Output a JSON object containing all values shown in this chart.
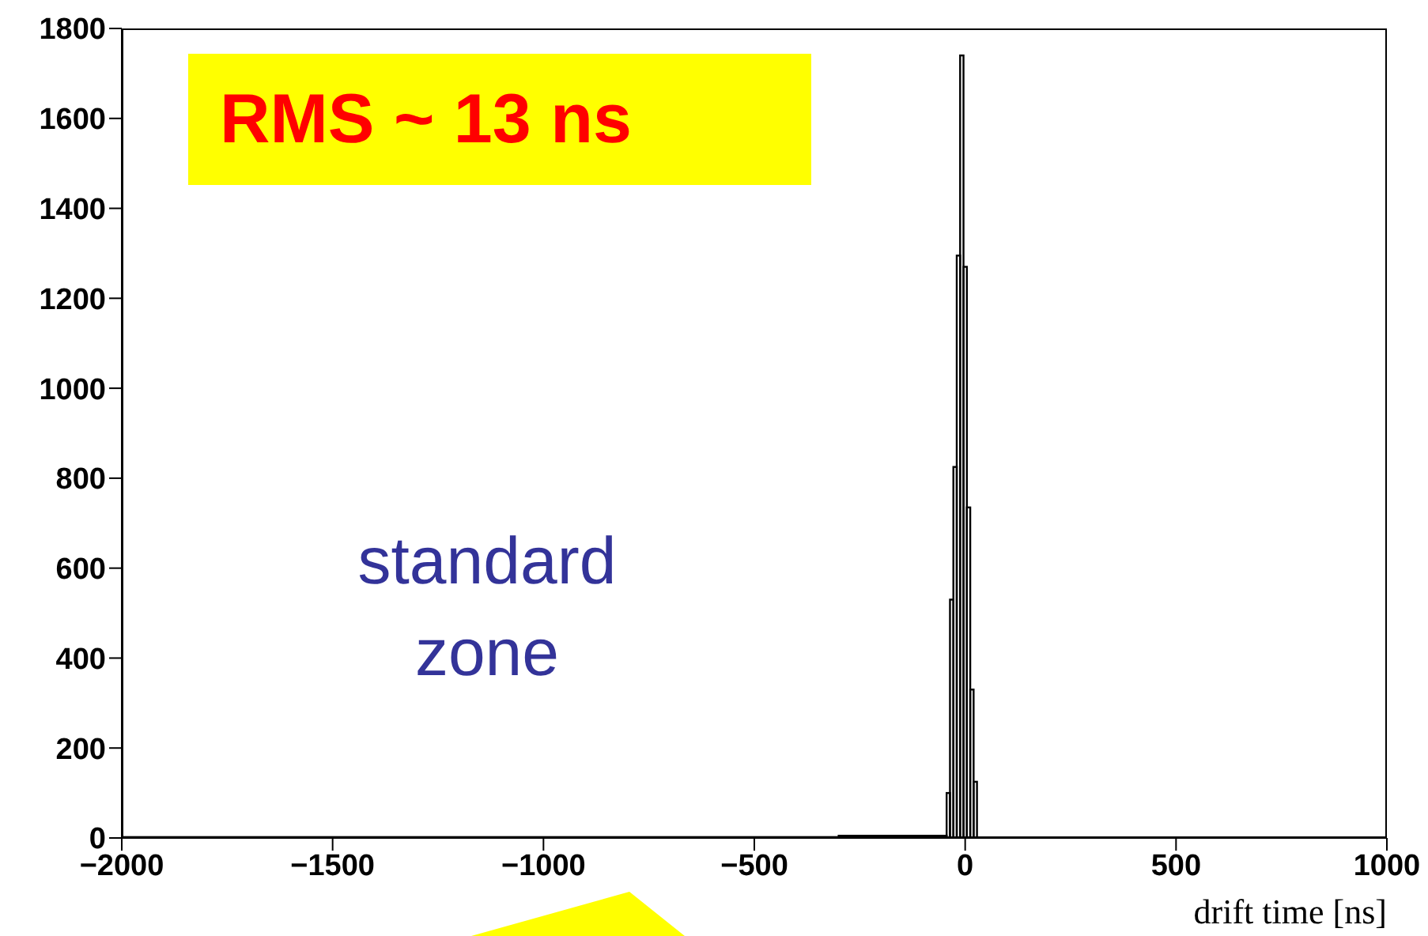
{
  "chart_data": {
    "type": "histogram",
    "xlabel": "drift time [ns]",
    "bins": [
      -2000,
      -300,
      -44,
      -36,
      -28,
      -20,
      -12,
      -4,
      4,
      12,
      20,
      28,
      1000
    ],
    "values": [
      2,
      5,
      100,
      530,
      825,
      1295,
      1740,
      1270,
      735,
      330,
      125,
      1
    ],
    "color": "#000000",
    "xlim": [
      -2000,
      1000
    ],
    "xticks": [
      -2000,
      -1500,
      -1000,
      -500,
      0,
      500,
      1000
    ],
    "ylim": [
      0,
      1800
    ],
    "yticks": [
      0,
      200,
      400,
      600,
      800,
      1000,
      1200,
      1400,
      1600,
      1800
    ],
    "grid": false,
    "annotations": [
      "RMS ~ 13 ns",
      "standard zone"
    ]
  }
}
